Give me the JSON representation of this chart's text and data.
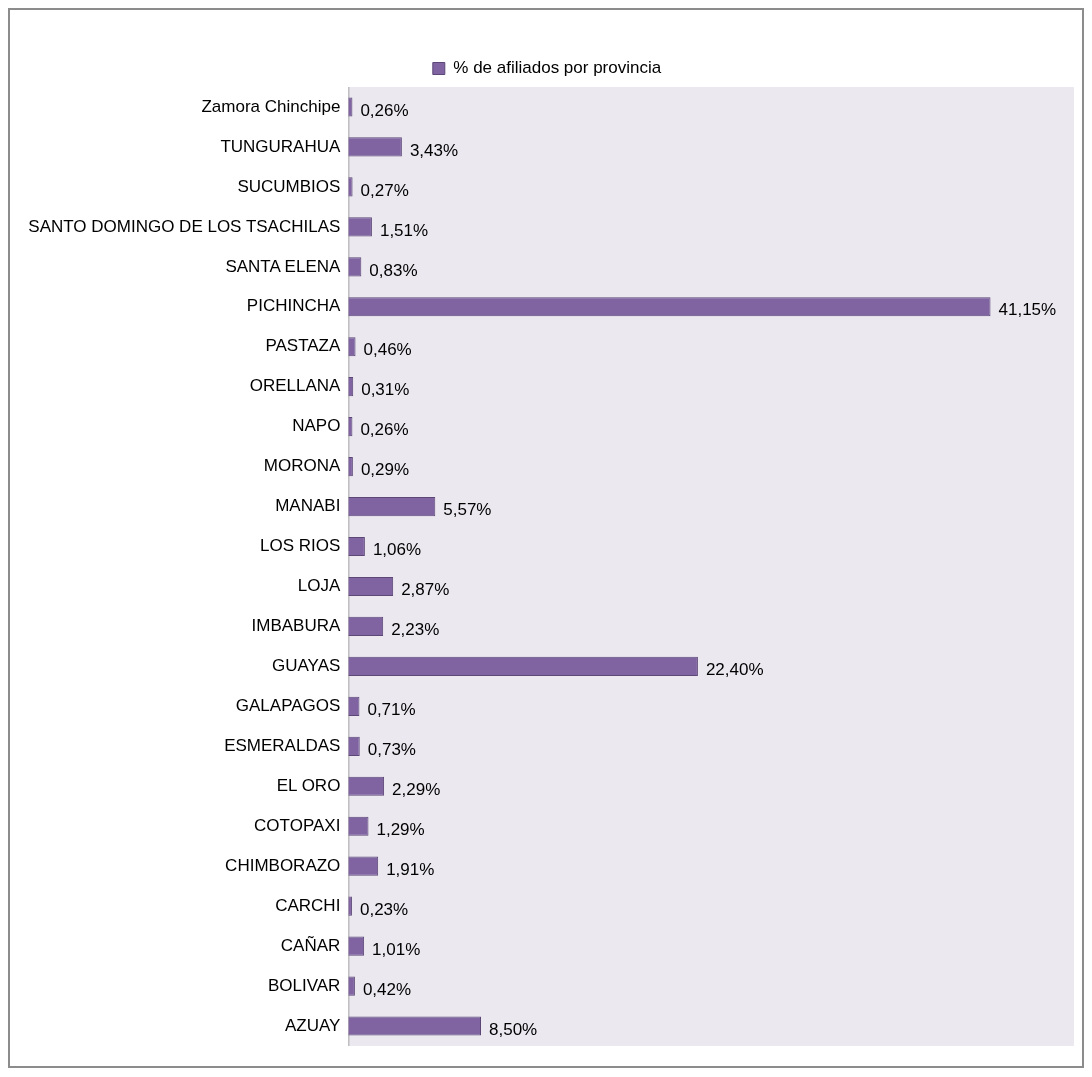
{
  "chart_data": {
    "type": "bar",
    "orientation": "horizontal",
    "categories": [
      "Zamora Chinchipe",
      "TUNGURAHUA",
      "SUCUMBIOS",
      "SANTO DOMINGO DE LOS TSACHILAS",
      "SANTA ELENA",
      "PICHINCHA",
      "PASTAZA",
      "ORELLANA",
      "NAPO",
      "MORONA",
      "MANABI",
      "LOS RIOS",
      "LOJA",
      "IMBABURA",
      "GUAYAS",
      "GALAPAGOS",
      "ESMERALDAS",
      "EL ORO",
      "COTOPAXI",
      "CHIMBORAZO",
      "CARCHI",
      "CAÑAR",
      "BOLIVAR",
      "AZUAY"
    ],
    "series": [
      {
        "name": "% de afiliados por provincia",
        "color": "#8064a2",
        "values": [
          0.26,
          3.43,
          0.27,
          1.51,
          0.83,
          41.15,
          0.46,
          0.31,
          0.26,
          0.29,
          5.57,
          1.06,
          2.87,
          2.23,
          22.4,
          0.71,
          0.73,
          2.29,
          1.29,
          1.91,
          0.23,
          1.01,
          0.42,
          8.5
        ],
        "value_labels": [
          "0,26%",
          "3,43%",
          "0,27%",
          "1,51%",
          "0,83%",
          "41,15%",
          "0,46%",
          "0,31%",
          "0,26%",
          "0,29%",
          "5,57%",
          "1,06%",
          "2,87%",
          "2,23%",
          "22,40%",
          "0,71%",
          "0,73%",
          "2,29%",
          "1,29%",
          "1,91%",
          "0,23%",
          "1,01%",
          "0,42%",
          "8,50%"
        ]
      }
    ],
    "legend": "top",
    "grid": false,
    "tick_labels": "y"
  }
}
